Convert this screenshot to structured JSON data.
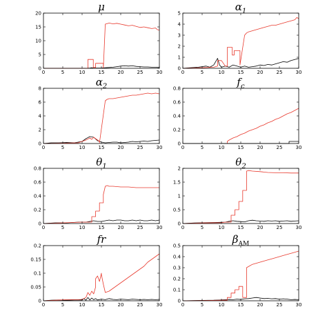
{
  "chart_data": [
    {
      "type": "line",
      "title": "μ",
      "xlim": [
        0,
        30
      ],
      "ylim": [
        0,
        20
      ],
      "xticks": [
        0,
        5,
        10,
        15,
        20,
        25,
        30
      ],
      "yticks": [
        0,
        5,
        10,
        15,
        20
      ],
      "grid": false,
      "series": [
        {
          "color": "#000000",
          "x": [
            0,
            5,
            10,
            11,
            12,
            12.5,
            13,
            14,
            15,
            16,
            17,
            18,
            19,
            20,
            21,
            22,
            23,
            24,
            25,
            26,
            27,
            28,
            29,
            30
          ],
          "y": [
            0,
            0,
            0,
            0,
            0.1,
            0.2,
            0.1,
            0.1,
            0.1,
            0.2,
            0.3,
            0.4,
            0.6,
            0.8,
            0.9,
            0.8,
            0.9,
            0.7,
            0.6,
            0.5,
            0.5,
            0.4,
            0.4,
            0.3
          ]
        },
        {
          "color": "#e8382c",
          "x": [
            0,
            5,
            10,
            11.5,
            11.5,
            12.9,
            12.9,
            13.5,
            13.5,
            15.5,
            15.5,
            16,
            16.5,
            17,
            18,
            19,
            20,
            21,
            22,
            23,
            24,
            25,
            26,
            27,
            28,
            29,
            29.5,
            30
          ],
          "y": [
            0,
            0,
            0,
            0,
            3.2,
            3.2,
            0.3,
            0.3,
            1.8,
            1.8,
            0,
            16,
            16.2,
            16.4,
            16.1,
            16.3,
            16.0,
            15.7,
            15.4,
            15.6,
            15.2,
            14.8,
            15.0,
            14.7,
            14.4,
            14.6,
            14.0,
            13.8
          ]
        }
      ]
    },
    {
      "type": "line",
      "title": "α1",
      "xlim": [
        0,
        30
      ],
      "ylim": [
        0,
        5
      ],
      "xticks": [
        0,
        5,
        10,
        15,
        20,
        25,
        30
      ],
      "yticks": [
        0,
        1,
        2,
        3,
        4,
        5
      ],
      "grid": false,
      "series": [
        {
          "color": "#000000",
          "x": [
            0,
            2,
            4,
            6,
            7,
            8,
            9,
            9.5,
            10,
            11,
            12,
            13,
            14,
            15,
            16,
            17,
            18,
            19,
            20,
            21,
            22,
            23,
            24,
            25,
            26,
            27,
            28,
            29,
            30
          ],
          "y": [
            0,
            0.05,
            0.1,
            0.2,
            0.1,
            0.3,
            0.9,
            0.3,
            0.1,
            0.2,
            0.1,
            0.3,
            0.2,
            0.1,
            0.2,
            0.1,
            0.15,
            0.2,
            0.3,
            0.25,
            0.35,
            0.3,
            0.4,
            0.5,
            0.6,
            0.55,
            0.7,
            0.8,
            0.9
          ]
        },
        {
          "color": "#e8382c",
          "x": [
            0,
            5,
            8,
            9,
            9,
            10,
            11,
            11.5,
            11.5,
            12.8,
            12.8,
            13.3,
            13.3,
            14.8,
            14.8,
            16,
            16.5,
            17,
            18,
            19,
            20,
            21,
            22,
            23,
            24,
            25,
            26,
            27,
            28,
            29,
            29.5,
            30
          ],
          "y": [
            0,
            0.05,
            0.1,
            0.2,
            0.7,
            0.7,
            0.2,
            0.2,
            1.9,
            1.9,
            1.2,
            1.2,
            1.6,
            1.6,
            0.3,
            3.0,
            3.2,
            3.3,
            3.4,
            3.5,
            3.6,
            3.7,
            3.8,
            3.9,
            3.9,
            4.0,
            4.1,
            4.2,
            4.3,
            4.4,
            4.6,
            4.5
          ]
        }
      ]
    },
    {
      "type": "line",
      "title": "α2",
      "xlim": [
        0,
        30
      ],
      "ylim": [
        0,
        8
      ],
      "xticks": [
        0,
        5,
        10,
        15,
        20,
        25,
        30
      ],
      "yticks": [
        0,
        2,
        4,
        6,
        8
      ],
      "grid": false,
      "series": [
        {
          "color": "#000000",
          "x": [
            0,
            2,
            4,
            6,
            8,
            10,
            11,
            12,
            13,
            14,
            15,
            16,
            17,
            18,
            19,
            20,
            21,
            22,
            23,
            24,
            25,
            26,
            27,
            28,
            29,
            30
          ],
          "y": [
            0,
            0.1,
            0.1,
            0.15,
            0.1,
            0.3,
            0.7,
            1.0,
            0.9,
            0.4,
            0.2,
            0.1,
            0.15,
            0.2,
            0.2,
            0.1,
            0.15,
            0.2,
            0.3,
            0.25,
            0.3,
            0.35,
            0.3,
            0.4,
            0.45,
            0.5
          ]
        },
        {
          "color": "#e8382c",
          "x": [
            0,
            5,
            9,
            10,
            11,
            12,
            12.5,
            13,
            14,
            14.5,
            14.5,
            16,
            16.5,
            17,
            18,
            19,
            20,
            21,
            22,
            23,
            24,
            25,
            26,
            27,
            28,
            29,
            30
          ],
          "y": [
            0,
            0.05,
            0.1,
            0.3,
            0.5,
            0.8,
            0.6,
            0.9,
            0.5,
            0.3,
            0.1,
            6.2,
            6.4,
            6.5,
            6.5,
            6.6,
            6.7,
            6.8,
            6.9,
            7.0,
            7.0,
            7.1,
            7.2,
            7.3,
            7.2,
            7.3,
            7.2
          ]
        }
      ]
    },
    {
      "type": "line",
      "title": "fc",
      "xlim": [
        0,
        30
      ],
      "ylim": [
        0,
        0.8
      ],
      "xticks": [
        0,
        5,
        10,
        15,
        20,
        25,
        30
      ],
      "yticks": [
        0,
        0.2,
        0.4,
        0.6,
        0.8
      ],
      "grid": false,
      "series": [
        {
          "color": "#000000",
          "x": [
            0,
            5,
            10,
            15,
            20,
            25,
            27.5,
            27.5,
            30
          ],
          "y": [
            0,
            0,
            0,
            0,
            0,
            0,
            0,
            0.03,
            0.03
          ]
        },
        {
          "color": "#e8382c",
          "x": [
            11.5,
            11.5,
            12,
            13,
            14,
            15,
            16,
            17,
            18,
            19,
            20,
            21,
            22,
            23,
            24,
            25,
            26,
            27,
            28,
            29,
            30
          ],
          "y": [
            0,
            0.03,
            0.05,
            0.08,
            0.1,
            0.13,
            0.15,
            0.18,
            0.2,
            0.22,
            0.25,
            0.27,
            0.3,
            0.32,
            0.35,
            0.37,
            0.4,
            0.43,
            0.45,
            0.48,
            0.51
          ]
        }
      ]
    },
    {
      "type": "line",
      "title": "θ1",
      "xlim": [
        0,
        30
      ],
      "ylim": [
        0,
        0.8
      ],
      "xticks": [
        0,
        5,
        10,
        15,
        20,
        25,
        30
      ],
      "yticks": [
        0,
        0.2,
        0.4,
        0.6,
        0.8
      ],
      "grid": false,
      "series": [
        {
          "color": "#000000",
          "x": [
            0,
            3,
            6,
            9,
            10,
            11,
            12,
            13,
            14,
            15,
            16,
            17,
            18,
            19,
            20,
            21,
            22,
            23,
            24,
            25,
            26,
            27,
            28,
            29,
            30
          ],
          "y": [
            0,
            0.01,
            0.01,
            0.02,
            0.02,
            0.02,
            0.03,
            0.04,
            0.03,
            0.03,
            0.04,
            0.05,
            0.04,
            0.05,
            0.05,
            0.04,
            0.04,
            0.05,
            0.04,
            0.05,
            0.04,
            0.04,
            0.05,
            0.04,
            0.05
          ]
        },
        {
          "color": "#e8382c",
          "x": [
            0,
            5,
            10,
            11,
            12,
            12.5,
            12.5,
            13.5,
            13.5,
            14.5,
            14.5,
            15.5,
            15.5,
            16,
            16.5,
            17,
            18,
            20,
            22,
            24,
            26,
            28,
            30
          ],
          "y": [
            0,
            0.01,
            0.02,
            0.02,
            0.02,
            0.02,
            0.1,
            0.1,
            0.18,
            0.18,
            0.3,
            0.3,
            0.42,
            0.54,
            0.55,
            0.54,
            0.54,
            0.53,
            0.53,
            0.52,
            0.52,
            0.52,
            0.52
          ]
        }
      ]
    },
    {
      "type": "line",
      "title": "θ2",
      "xlim": [
        0,
        30
      ],
      "ylim": [
        0,
        2
      ],
      "xticks": [
        0,
        5,
        10,
        15,
        20,
        25,
        30
      ],
      "yticks": [
        0,
        0.5,
        1,
        1.5,
        2
      ],
      "grid": false,
      "series": [
        {
          "color": "#000000",
          "x": [
            0,
            3,
            6,
            9,
            11,
            12,
            13,
            14,
            15,
            16,
            17,
            18,
            19,
            20,
            21,
            22,
            23,
            24,
            25,
            26,
            27,
            28,
            29,
            30
          ],
          "y": [
            0,
            0.02,
            0.03,
            0.04,
            0.05,
            0.08,
            0.1,
            0.08,
            0.07,
            0.06,
            0.1,
            0.12,
            0.1,
            0.09,
            0.08,
            0.1,
            0.09,
            0.1,
            0.08,
            0.09,
            0.1,
            0.08,
            0.09,
            0.1
          ]
        },
        {
          "color": "#e8382c",
          "x": [
            0,
            5,
            10,
            11,
            12,
            12.5,
            12.5,
            13.5,
            13.5,
            14.5,
            14.5,
            15.5,
            15.5,
            16.5,
            16.5,
            17,
            18,
            20,
            22,
            24,
            26,
            28,
            30
          ],
          "y": [
            0,
            0.02,
            0.03,
            0.05,
            0.05,
            0.05,
            0.3,
            0.3,
            0.5,
            0.5,
            0.8,
            0.8,
            1.2,
            1.2,
            1.9,
            1.92,
            1.9,
            1.88,
            1.85,
            1.84,
            1.84,
            1.83,
            1.83
          ]
        }
      ]
    },
    {
      "type": "line",
      "title": "fr",
      "xlim": [
        0,
        30
      ],
      "ylim": [
        0,
        0.2
      ],
      "xticks": [
        0,
        5,
        10,
        15,
        20,
        25,
        30
      ],
      "yticks": [
        0,
        0.05,
        0.1,
        0.15,
        0.2
      ],
      "grid": false,
      "series": [
        {
          "color": "#000000",
          "x": [
            0,
            2,
            4,
            6,
            8,
            10,
            10.5,
            11,
            11.5,
            12,
            12.5,
            13,
            13.5,
            14,
            15,
            16,
            17,
            18,
            19,
            20,
            21,
            22,
            23,
            24,
            25,
            26,
            27,
            28,
            29,
            30
          ],
          "y": [
            0,
            0.002,
            0.003,
            0.002,
            0.003,
            0.003,
            0.008,
            0.002,
            0.012,
            0.003,
            0.01,
            0.004,
            0.008,
            0.003,
            0.006,
            0.004,
            0.008,
            0.005,
            0.004,
            0.006,
            0.005,
            0.004,
            0.006,
            0.005,
            0.004,
            0.005,
            0.004,
            0.005,
            0.004,
            0.005
          ]
        },
        {
          "color": "#e8382c",
          "x": [
            0,
            3,
            6,
            9,
            10,
            11,
            11.5,
            12,
            12.5,
            13,
            13.5,
            13.5,
            14,
            14.5,
            15,
            15,
            15.5,
            16,
            17,
            18,
            19,
            20,
            21,
            22,
            23,
            24,
            25,
            26,
            27,
            28,
            29,
            30
          ],
          "y": [
            0,
            0.002,
            0.004,
            0.004,
            0.005,
            0.012,
            0.03,
            0.02,
            0.035,
            0.025,
            0.05,
            0.08,
            0.09,
            0.07,
            0.1,
            0.095,
            0.06,
            0.03,
            0.035,
            0.045,
            0.055,
            0.065,
            0.075,
            0.085,
            0.095,
            0.105,
            0.115,
            0.125,
            0.14,
            0.15,
            0.16,
            0.17
          ]
        }
      ]
    },
    {
      "type": "line",
      "title": "βAM",
      "xlim": [
        0,
        30
      ],
      "ylim": [
        0,
        0.5
      ],
      "xticks": [
        0,
        5,
        10,
        15,
        20,
        25,
        30
      ],
      "yticks": [
        0,
        0.1,
        0.2,
        0.3,
        0.4,
        0.5
      ],
      "grid": false,
      "series": [
        {
          "color": "#000000",
          "x": [
            0,
            4,
            8,
            10,
            12,
            13,
            14,
            15,
            16,
            17,
            18,
            19,
            20,
            21,
            22,
            23,
            24,
            25,
            26,
            27,
            28,
            29,
            30
          ],
          "y": [
            0,
            0.003,
            0.005,
            0.008,
            0.012,
            0.01,
            0.015,
            0.012,
            0.018,
            0.02,
            0.025,
            0.03,
            0.025,
            0.02,
            0.022,
            0.018,
            0.02,
            0.015,
            0.018,
            0.015,
            0.01,
            0.012,
            0.01
          ]
        },
        {
          "color": "#e8382c",
          "x": [
            0,
            5,
            10,
            11.5,
            11.5,
            12.5,
            12.5,
            13.5,
            13.5,
            14.5,
            14.5,
            15.5,
            15.5,
            16.5,
            16.5,
            17,
            18,
            19,
            20,
            21,
            22,
            23,
            24,
            25,
            26,
            27,
            28,
            29,
            30
          ],
          "y": [
            0,
            0.002,
            0.005,
            0.005,
            0.03,
            0.03,
            0.07,
            0.07,
            0.1,
            0.1,
            0.13,
            0.13,
            0.03,
            0.03,
            0.3,
            0.31,
            0.33,
            0.34,
            0.35,
            0.36,
            0.37,
            0.38,
            0.39,
            0.4,
            0.41,
            0.42,
            0.43,
            0.44,
            0.45
          ]
        }
      ]
    }
  ]
}
